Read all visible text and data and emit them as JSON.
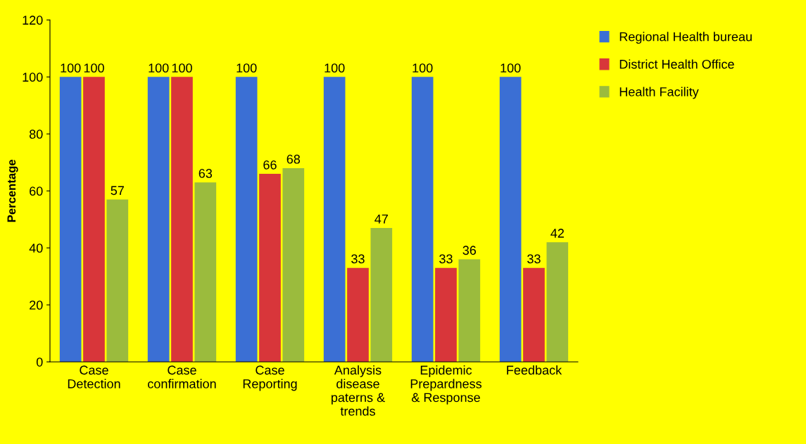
{
  "chart_data": {
    "type": "bar",
    "ylabel": "Percentage",
    "categories": [
      "Case\nDetection",
      "Case\nconfirmation",
      "Case\nReporting",
      "Analysis\ndisease\npaterns &\ntrends",
      "Epidemic\nPrepardness\n& Response",
      "Feedback"
    ],
    "series": [
      {
        "name": "Regional Health bureau",
        "color": "#3b6fd4",
        "values": [
          100,
          100,
          100,
          100,
          100,
          100
        ]
      },
      {
        "name": "District Health Office",
        "color": "#d8363a",
        "values": [
          100,
          100,
          66,
          33,
          33,
          33
        ]
      },
      {
        "name": "Health Facility",
        "color": "#9bbb3d",
        "values": [
          57,
          63,
          68,
          47,
          36,
          42
        ]
      }
    ],
    "ylim": [
      0,
      120
    ],
    "yticks": [
      0,
      20,
      40,
      60,
      80,
      100,
      120
    ],
    "grid": false,
    "legend": "top right",
    "data_labels": true
  }
}
